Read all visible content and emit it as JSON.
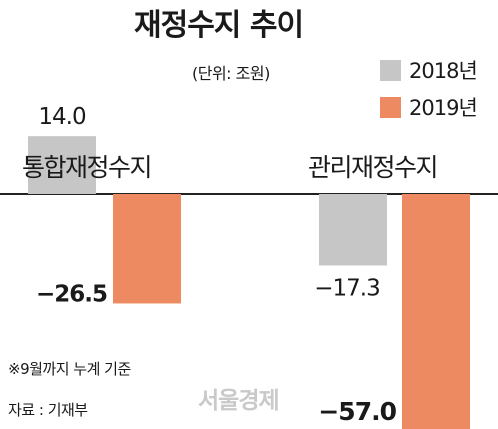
{
  "chart_data": {
    "type": "bar",
    "title": "재정수지 추이",
    "unit": "(단위: 조원)",
    "categories": [
      "통합재정수지",
      "관리재정수지"
    ],
    "series": [
      {
        "name": "2018년",
        "color": "#c6c6c6",
        "values": [
          14.0,
          -17.3
        ]
      },
      {
        "name": "2019년",
        "color": "#ee8a61",
        "values": [
          -26.5,
          -57.0
        ]
      }
    ],
    "data_labels": [
      [
        "14.0",
        "−17.3"
      ],
      [
        "−26.5",
        "−57.0"
      ]
    ],
    "xlabel": "",
    "ylabel": "",
    "ylim": [
      -57.0,
      14.0
    ],
    "grid": false,
    "legend_position": "top-right"
  },
  "notes": {
    "footnote": "※9월까지 누계 기준",
    "source": "자료 : 기재부"
  },
  "watermark": "서울경제"
}
